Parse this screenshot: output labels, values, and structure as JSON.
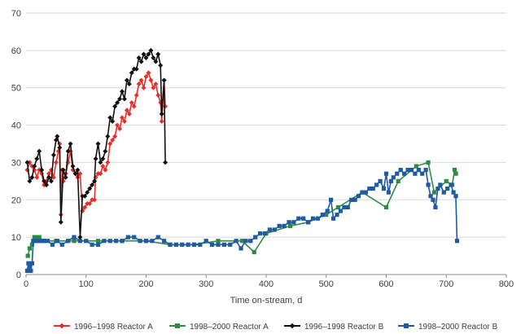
{
  "chart_data": {
    "type": "scatter",
    "title": "",
    "xlabel": "Time on-stream, d",
    "ylabel": "",
    "xlim": [
      0,
      800
    ],
    "ylim": [
      0,
      70
    ],
    "xticks": [
      0,
      100,
      200,
      300,
      400,
      500,
      600,
      700,
      800
    ],
    "yticks": [
      0,
      10,
      20,
      30,
      40,
      50,
      60,
      70
    ],
    "grid": "horizontal",
    "legend_position": "bottom",
    "series": [
      {
        "name": "1996–1998 Reactor A",
        "color": "#e8302a",
        "marker": "diamond",
        "points": [
          [
            2,
            28
          ],
          [
            6,
            30
          ],
          [
            10,
            29
          ],
          [
            14,
            28
          ],
          [
            18,
            26
          ],
          [
            22,
            28
          ],
          [
            26,
            27
          ],
          [
            30,
            24
          ],
          [
            34,
            25
          ],
          [
            38,
            27
          ],
          [
            42,
            28
          ],
          [
            46,
            26
          ],
          [
            50,
            30
          ],
          [
            54,
            33
          ],
          [
            56,
            35
          ],
          [
            58,
            16
          ],
          [
            60,
            28
          ],
          [
            62,
            25
          ],
          [
            66,
            27
          ],
          [
            70,
            30
          ],
          [
            74,
            33
          ],
          [
            78,
            28
          ],
          [
            82,
            27
          ],
          [
            86,
            26
          ],
          [
            90,
            27
          ],
          [
            94,
            17
          ],
          [
            98,
            18
          ],
          [
            102,
            19
          ],
          [
            106,
            19
          ],
          [
            110,
            20
          ],
          [
            114,
            20
          ],
          [
            116,
            26
          ],
          [
            120,
            27
          ],
          [
            124,
            27
          ],
          [
            128,
            29
          ],
          [
            132,
            28
          ],
          [
            136,
            30
          ],
          [
            140,
            35
          ],
          [
            144,
            36
          ],
          [
            148,
            37
          ],
          [
            152,
            40
          ],
          [
            156,
            39
          ],
          [
            160,
            42
          ],
          [
            164,
            41
          ],
          [
            168,
            44
          ],
          [
            172,
            43
          ],
          [
            176,
            46
          ],
          [
            180,
            45
          ],
          [
            184,
            48
          ],
          [
            188,
            51
          ],
          [
            192,
            52
          ],
          [
            196,
            50
          ],
          [
            200,
            53
          ],
          [
            204,
            54
          ],
          [
            208,
            52
          ],
          [
            212,
            50
          ],
          [
            216,
            51
          ],
          [
            220,
            48
          ],
          [
            224,
            46
          ],
          [
            226,
            41
          ],
          [
            230,
            52
          ],
          [
            232,
            45
          ]
        ]
      },
      {
        "name": "1998–2000 Reactor A",
        "color": "#2e8b46",
        "marker": "square",
        "points": [
          [
            3,
            5
          ],
          [
            6,
            7
          ],
          [
            10,
            8
          ],
          [
            14,
            10
          ],
          [
            18,
            10
          ],
          [
            22,
            10
          ],
          [
            30,
            9
          ],
          [
            50,
            9
          ],
          [
            80,
            9
          ],
          [
            120,
            9
          ],
          [
            160,
            9
          ],
          [
            200,
            9
          ],
          [
            240,
            8
          ],
          [
            280,
            8
          ],
          [
            320,
            9
          ],
          [
            360,
            9
          ],
          [
            380,
            6
          ],
          [
            400,
            11
          ],
          [
            440,
            13
          ],
          [
            470,
            14
          ],
          [
            500,
            16
          ],
          [
            520,
            18
          ],
          [
            560,
            22
          ],
          [
            600,
            18
          ],
          [
            620,
            25
          ],
          [
            650,
            29
          ],
          [
            670,
            30
          ],
          [
            680,
            22
          ],
          [
            700,
            25
          ],
          [
            710,
            24
          ],
          [
            714,
            28
          ],
          [
            716,
            27
          ]
        ]
      },
      {
        "name": "1996–1998 Reactor B",
        "color": "#111111",
        "marker": "diamond",
        "points": [
          [
            2,
            30
          ],
          [
            6,
            25
          ],
          [
            10,
            26
          ],
          [
            14,
            29
          ],
          [
            18,
            31
          ],
          [
            22,
            33
          ],
          [
            26,
            28
          ],
          [
            30,
            25
          ],
          [
            34,
            24
          ],
          [
            38,
            26
          ],
          [
            42,
            25
          ],
          [
            46,
            32
          ],
          [
            50,
            36
          ],
          [
            52,
            37
          ],
          [
            56,
            34
          ],
          [
            58,
            14
          ],
          [
            62,
            28
          ],
          [
            66,
            26
          ],
          [
            70,
            33
          ],
          [
            74,
            35
          ],
          [
            78,
            29
          ],
          [
            82,
            27
          ],
          [
            86,
            28
          ],
          [
            90,
            10
          ],
          [
            94,
            21
          ],
          [
            98,
            21
          ],
          [
            102,
            22
          ],
          [
            106,
            23
          ],
          [
            110,
            24
          ],
          [
            114,
            25
          ],
          [
            116,
            31
          ],
          [
            120,
            35
          ],
          [
            124,
            30
          ],
          [
            128,
            31
          ],
          [
            132,
            33
          ],
          [
            136,
            37
          ],
          [
            140,
            42
          ],
          [
            144,
            41
          ],
          [
            148,
            45
          ],
          [
            152,
            46
          ],
          [
            156,
            47
          ],
          [
            160,
            49
          ],
          [
            164,
            47
          ],
          [
            168,
            52
          ],
          [
            172,
            51
          ],
          [
            176,
            54
          ],
          [
            180,
            55
          ],
          [
            184,
            55
          ],
          [
            188,
            58
          ],
          [
            192,
            57
          ],
          [
            196,
            59
          ],
          [
            200,
            58
          ],
          [
            204,
            59
          ],
          [
            208,
            60
          ],
          [
            212,
            58
          ],
          [
            216,
            57
          ],
          [
            220,
            59
          ],
          [
            224,
            56
          ],
          [
            226,
            43
          ],
          [
            230,
            52
          ],
          [
            232,
            30
          ]
        ]
      },
      {
        "name": "1998–2000 Reactor B",
        "color": "#1f5ba0",
        "marker": "square",
        "points": [
          [
            2,
            1
          ],
          [
            4,
            3
          ],
          [
            6,
            2
          ],
          [
            8,
            1
          ],
          [
            10,
            3
          ],
          [
            12,
            9
          ],
          [
            16,
            9
          ],
          [
            20,
            9
          ],
          [
            24,
            9
          ],
          [
            30,
            9
          ],
          [
            36,
            9
          ],
          [
            44,
            8
          ],
          [
            52,
            9
          ],
          [
            60,
            8
          ],
          [
            70,
            9
          ],
          [
            80,
            10
          ],
          [
            90,
            9
          ],
          [
            100,
            9
          ],
          [
            110,
            8
          ],
          [
            120,
            8
          ],
          [
            130,
            9
          ],
          [
            140,
            9
          ],
          [
            150,
            9
          ],
          [
            160,
            9
          ],
          [
            170,
            10
          ],
          [
            180,
            10
          ],
          [
            190,
            9
          ],
          [
            200,
            9
          ],
          [
            210,
            9
          ],
          [
            220,
            10
          ],
          [
            230,
            9
          ],
          [
            240,
            8
          ],
          [
            250,
            8
          ],
          [
            260,
            8
          ],
          [
            270,
            8
          ],
          [
            280,
            8
          ],
          [
            290,
            8
          ],
          [
            300,
            9
          ],
          [
            310,
            8
          ],
          [
            320,
            8
          ],
          [
            330,
            8
          ],
          [
            340,
            8
          ],
          [
            350,
            9
          ],
          [
            358,
            7
          ],
          [
            366,
            9
          ],
          [
            374,
            9
          ],
          [
            382,
            10
          ],
          [
            390,
            11
          ],
          [
            398,
            11
          ],
          [
            406,
            12
          ],
          [
            414,
            12
          ],
          [
            422,
            13
          ],
          [
            430,
            13
          ],
          [
            438,
            14
          ],
          [
            446,
            14
          ],
          [
            454,
            15
          ],
          [
            462,
            15
          ],
          [
            470,
            14
          ],
          [
            478,
            15
          ],
          [
            486,
            15
          ],
          [
            494,
            16
          ],
          [
            502,
            17
          ],
          [
            508,
            20
          ],
          [
            512,
            15
          ],
          [
            518,
            16
          ],
          [
            524,
            17
          ],
          [
            530,
            18
          ],
          [
            536,
            18
          ],
          [
            542,
            20
          ],
          [
            548,
            20
          ],
          [
            554,
            21
          ],
          [
            560,
            22
          ],
          [
            566,
            22
          ],
          [
            572,
            23
          ],
          [
            578,
            23
          ],
          [
            584,
            24
          ],
          [
            590,
            25
          ],
          [
            596,
            23
          ],
          [
            600,
            27
          ],
          [
            604,
            22
          ],
          [
            608,
            25
          ],
          [
            612,
            26
          ],
          [
            618,
            27
          ],
          [
            624,
            28
          ],
          [
            630,
            27
          ],
          [
            636,
            28
          ],
          [
            642,
            28
          ],
          [
            648,
            27
          ],
          [
            654,
            28
          ],
          [
            660,
            27
          ],
          [
            666,
            28
          ],
          [
            670,
            24
          ],
          [
            674,
            21
          ],
          [
            678,
            20
          ],
          [
            682,
            18
          ],
          [
            686,
            23
          ],
          [
            690,
            24
          ],
          [
            696,
            22
          ],
          [
            702,
            23
          ],
          [
            708,
            24
          ],
          [
            712,
            22
          ],
          [
            716,
            21
          ],
          [
            718,
            9
          ]
        ]
      }
    ]
  }
}
